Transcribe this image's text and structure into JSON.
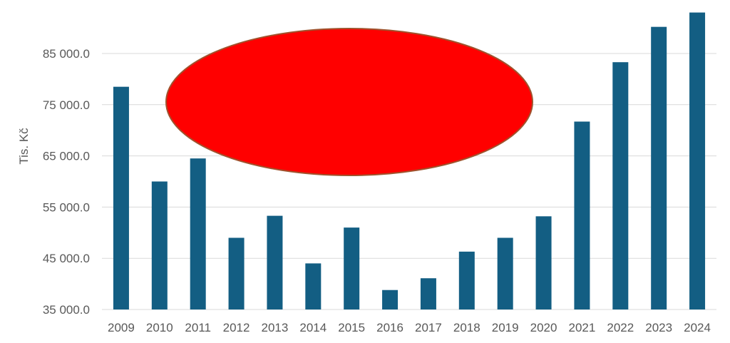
{
  "chart_data": {
    "type": "bar",
    "title": "",
    "xlabel": "",
    "ylabel": "Tis. Kč",
    "categories": [
      "2009",
      "2010",
      "2011",
      "2012",
      "2013",
      "2014",
      "2015",
      "2016",
      "2017",
      "2018",
      "2019",
      "2020",
      "2021",
      "2022",
      "2023",
      "2024"
    ],
    "values": [
      78500,
      60000,
      64500,
      49000,
      53300,
      44000,
      51000,
      38800,
      41100,
      46300,
      49000,
      53200,
      71700,
      83300,
      90200,
      93000
    ],
    "ylim": [
      35000,
      95000
    ],
    "yticks": [
      35000,
      45000,
      55000,
      65000,
      75000,
      85000
    ],
    "ytick_labels": [
      "35 000.0",
      "45 000.0",
      "55 000.0",
      "65 000.0",
      "75 000.0",
      "85 000.0"
    ],
    "grid": true,
    "legend": "none",
    "colors": {
      "bar": "#135e83",
      "grid": "#d9d9d9",
      "text": "#595959",
      "overlay_fill": "#ff0000",
      "overlay_stroke": "#a0522d"
    },
    "overlay": {
      "shape": "ellipse"
    }
  }
}
